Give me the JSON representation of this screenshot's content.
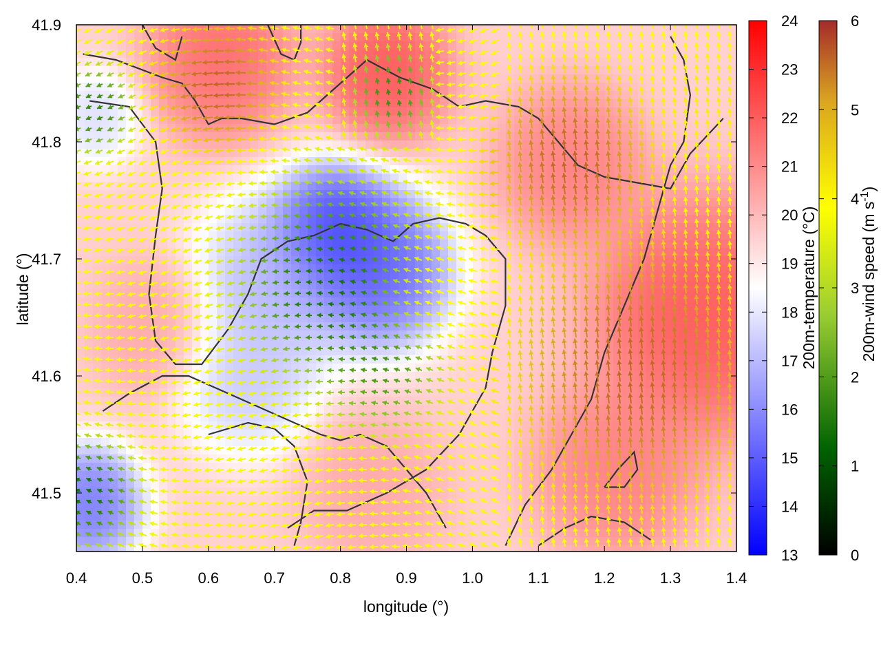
{
  "chart_data": {
    "type": "heatmap",
    "title": "",
    "xlabel": "longitude (°)",
    "ylabel": "latitude (°)",
    "xlim": [
      0.4,
      1.4
    ],
    "ylim": [
      41.45,
      41.9
    ],
    "x_ticks": [
      "0.4",
      "0.5",
      "0.6",
      "0.7",
      "0.8",
      "0.9",
      "1.0",
      "1.1",
      "1.2",
      "1.3",
      "1.4"
    ],
    "y_ticks": [
      "41.5",
      "41.6",
      "41.7",
      "41.8",
      "41.9"
    ],
    "grid": false,
    "legend": "none",
    "colorbars": [
      {
        "label": "200m-temperature (°C)",
        "range": [
          13,
          24
        ],
        "ticks": [
          "13",
          "14",
          "15",
          "16",
          "17",
          "18",
          "19",
          "20",
          "21",
          "22",
          "23",
          "24"
        ],
        "colors": [
          "#0000ff",
          "#ffffff",
          "#ff0000"
        ]
      },
      {
        "label": "200m-wind speed (m s-1)",
        "label_main": "200m-wind speed (m s",
        "label_sup": "-1",
        "label_close": ")",
        "range": [
          0,
          6
        ],
        "ticks": [
          "0",
          "1",
          "2",
          "3",
          "4",
          "5",
          "6"
        ],
        "colors": [
          "#000000",
          "#006400",
          "#9acd32",
          "#ffff00",
          "#daa520",
          "#a52a2a"
        ]
      }
    ],
    "temperature_field_blobs": [
      {
        "lon": 0.79,
        "lat": 41.72,
        "temp": 13.5,
        "spread": 0.07
      },
      {
        "lon": 0.86,
        "lat": 41.69,
        "temp": 14.5,
        "spread": 0.08
      },
      {
        "lon": 0.7,
        "lat": 41.68,
        "temp": 16.5,
        "spread": 0.09
      },
      {
        "lon": 0.66,
        "lat": 41.6,
        "temp": 17.0,
        "spread": 0.08
      },
      {
        "lon": 0.42,
        "lat": 41.49,
        "temp": 15.0,
        "spread": 0.06
      },
      {
        "lon": 0.43,
        "lat": 41.82,
        "temp": 17.5,
        "spread": 0.05
      },
      {
        "lon": 0.87,
        "lat": 41.86,
        "temp": 22.5,
        "spread": 0.07
      },
      {
        "lon": 0.62,
        "lat": 41.87,
        "temp": 22.0,
        "spread": 0.08
      },
      {
        "lon": 1.35,
        "lat": 41.65,
        "temp": 22.5,
        "spread": 0.12
      },
      {
        "lon": 1.22,
        "lat": 41.52,
        "temp": 21.5,
        "spread": 0.09
      },
      {
        "lon": 1.15,
        "lat": 41.78,
        "temp": 21.5,
        "spread": 0.08
      },
      {
        "lon": 0.52,
        "lat": 41.64,
        "temp": 20.5,
        "spread": 0.07
      },
      {
        "lon": 0.85,
        "lat": 41.5,
        "temp": 20.5,
        "spread": 0.08
      }
    ],
    "temperature_background": 19.5,
    "wind_field_blobs": [
      {
        "lon": 0.79,
        "lat": 41.68,
        "speed": 0.8,
        "spread": 0.09
      },
      {
        "lon": 0.87,
        "lat": 41.61,
        "speed": 1.5,
        "spread": 0.06
      },
      {
        "lon": 0.88,
        "lat": 41.84,
        "speed": 1.2,
        "spread": 0.04
      },
      {
        "lon": 0.42,
        "lat": 41.5,
        "speed": 0.8,
        "spread": 0.05
      },
      {
        "lon": 0.43,
        "lat": 41.83,
        "speed": 1.2,
        "spread": 0.04
      },
      {
        "lon": 0.62,
        "lat": 41.85,
        "speed": 6.0,
        "spread": 0.06
      },
      {
        "lon": 1.25,
        "lat": 41.6,
        "speed": 6.0,
        "spread": 0.12
      },
      {
        "lon": 1.15,
        "lat": 41.78,
        "speed": 6.0,
        "spread": 0.08
      },
      {
        "lon": 1.35,
        "lat": 41.83,
        "speed": 4.2,
        "spread": 0.06
      },
      {
        "lon": 0.95,
        "lat": 41.67,
        "speed": 4.0,
        "spread": 0.06
      }
    ],
    "wind_background": 3.8,
    "contours": [
      [
        [
          0.41,
          41.875
        ],
        [
          0.46,
          41.87
        ],
        [
          0.53,
          41.855
        ],
        [
          0.56,
          41.85
        ],
        [
          0.58,
          41.835
        ],
        [
          0.6,
          41.815
        ],
        [
          0.62,
          41.82
        ],
        [
          0.65,
          41.82
        ],
        [
          0.7,
          41.815
        ],
        [
          0.75,
          41.825
        ],
        [
          0.79,
          41.845
        ],
        [
          0.82,
          41.86
        ],
        [
          0.84,
          41.87
        ],
        [
          0.89,
          41.855
        ],
        [
          0.94,
          41.845
        ],
        [
          0.98,
          41.83
        ],
        [
          1.02,
          41.835
        ],
        [
          1.07,
          41.83
        ],
        [
          1.1,
          41.82
        ],
        [
          1.13,
          41.8
        ],
        [
          1.16,
          41.78
        ],
        [
          1.2,
          41.77
        ],
        [
          1.25,
          41.765
        ],
        [
          1.3,
          41.76
        ],
        [
          1.33,
          41.79
        ],
        [
          1.38,
          41.82
        ]
      ],
      [
        [
          0.42,
          41.835
        ],
        [
          0.48,
          41.83
        ],
        [
          0.52,
          41.8
        ],
        [
          0.53,
          41.76
        ],
        [
          0.52,
          41.72
        ],
        [
          0.51,
          41.67
        ],
        [
          0.52,
          41.63
        ],
        [
          0.55,
          41.61
        ],
        [
          0.59,
          41.61
        ],
        [
          0.63,
          41.64
        ],
        [
          0.66,
          41.67
        ],
        [
          0.68,
          41.7
        ],
        [
          0.72,
          41.715
        ],
        [
          0.76,
          41.72
        ],
        [
          0.8,
          41.73
        ],
        [
          0.84,
          41.725
        ],
        [
          0.88,
          41.715
        ],
        [
          0.91,
          41.73
        ],
        [
          0.95,
          41.735
        ],
        [
          0.99,
          41.73
        ],
        [
          1.02,
          41.72
        ],
        [
          1.05,
          41.7
        ],
        [
          1.05,
          41.66
        ],
        [
          1.03,
          41.62
        ],
        [
          1.02,
          41.59
        ],
        [
          0.98,
          41.55
        ],
        [
          0.93,
          41.52
        ],
        [
          0.87,
          41.5
        ],
        [
          0.81,
          41.485
        ],
        [
          0.76,
          41.485
        ],
        [
          0.72,
          41.47
        ]
      ],
      [
        [
          0.44,
          41.57
        ],
        [
          0.48,
          41.585
        ],
        [
          0.53,
          41.6
        ],
        [
          0.57,
          41.6
        ],
        [
          0.61,
          41.59
        ],
        [
          0.65,
          41.58
        ],
        [
          0.69,
          41.57
        ],
        [
          0.73,
          41.56
        ],
        [
          0.77,
          41.55
        ],
        [
          0.8,
          41.545
        ],
        [
          0.83,
          41.55
        ],
        [
          0.87,
          41.54
        ],
        [
          0.9,
          41.52
        ],
        [
          0.93,
          41.5
        ],
        [
          0.96,
          41.47
        ]
      ],
      [
        [
          0.6,
          41.55
        ],
        [
          0.66,
          41.56
        ],
        [
          0.7,
          41.555
        ],
        [
          0.73,
          41.54
        ],
        [
          0.75,
          41.51
        ],
        [
          0.74,
          41.475
        ],
        [
          0.73,
          41.455
        ]
      ],
      [
        [
          1.05,
          41.455
        ],
        [
          1.08,
          41.49
        ],
        [
          1.12,
          41.52
        ],
        [
          1.15,
          41.55
        ],
        [
          1.18,
          41.58
        ],
        [
          1.2,
          41.62
        ],
        [
          1.23,
          41.66
        ],
        [
          1.26,
          41.7
        ],
        [
          1.28,
          41.74
        ],
        [
          1.3,
          41.78
        ],
        [
          1.32,
          41.8
        ],
        [
          1.33,
          41.84
        ],
        [
          1.32,
          41.87
        ],
        [
          1.3,
          41.89
        ]
      ],
      [
        [
          1.1,
          41.455
        ],
        [
          1.14,
          41.47
        ],
        [
          1.18,
          41.48
        ],
        [
          1.23,
          41.475
        ],
        [
          1.27,
          41.46
        ]
      ],
      [
        [
          1.2,
          41.505
        ],
        [
          1.23,
          41.505
        ],
        [
          1.25,
          41.52
        ],
        [
          1.245,
          41.535
        ],
        [
          1.22,
          41.52
        ],
        [
          1.2,
          41.505
        ]
      ],
      [
        [
          0.69,
          41.9
        ],
        [
          0.71,
          41.875
        ],
        [
          0.73,
          41.87
        ],
        [
          0.74,
          41.885
        ],
        [
          0.74,
          41.9
        ]
      ],
      [
        [
          0.5,
          41.9
        ],
        [
          0.52,
          41.88
        ],
        [
          0.55,
          41.87
        ],
        [
          0.56,
          41.89
        ]
      ]
    ]
  }
}
